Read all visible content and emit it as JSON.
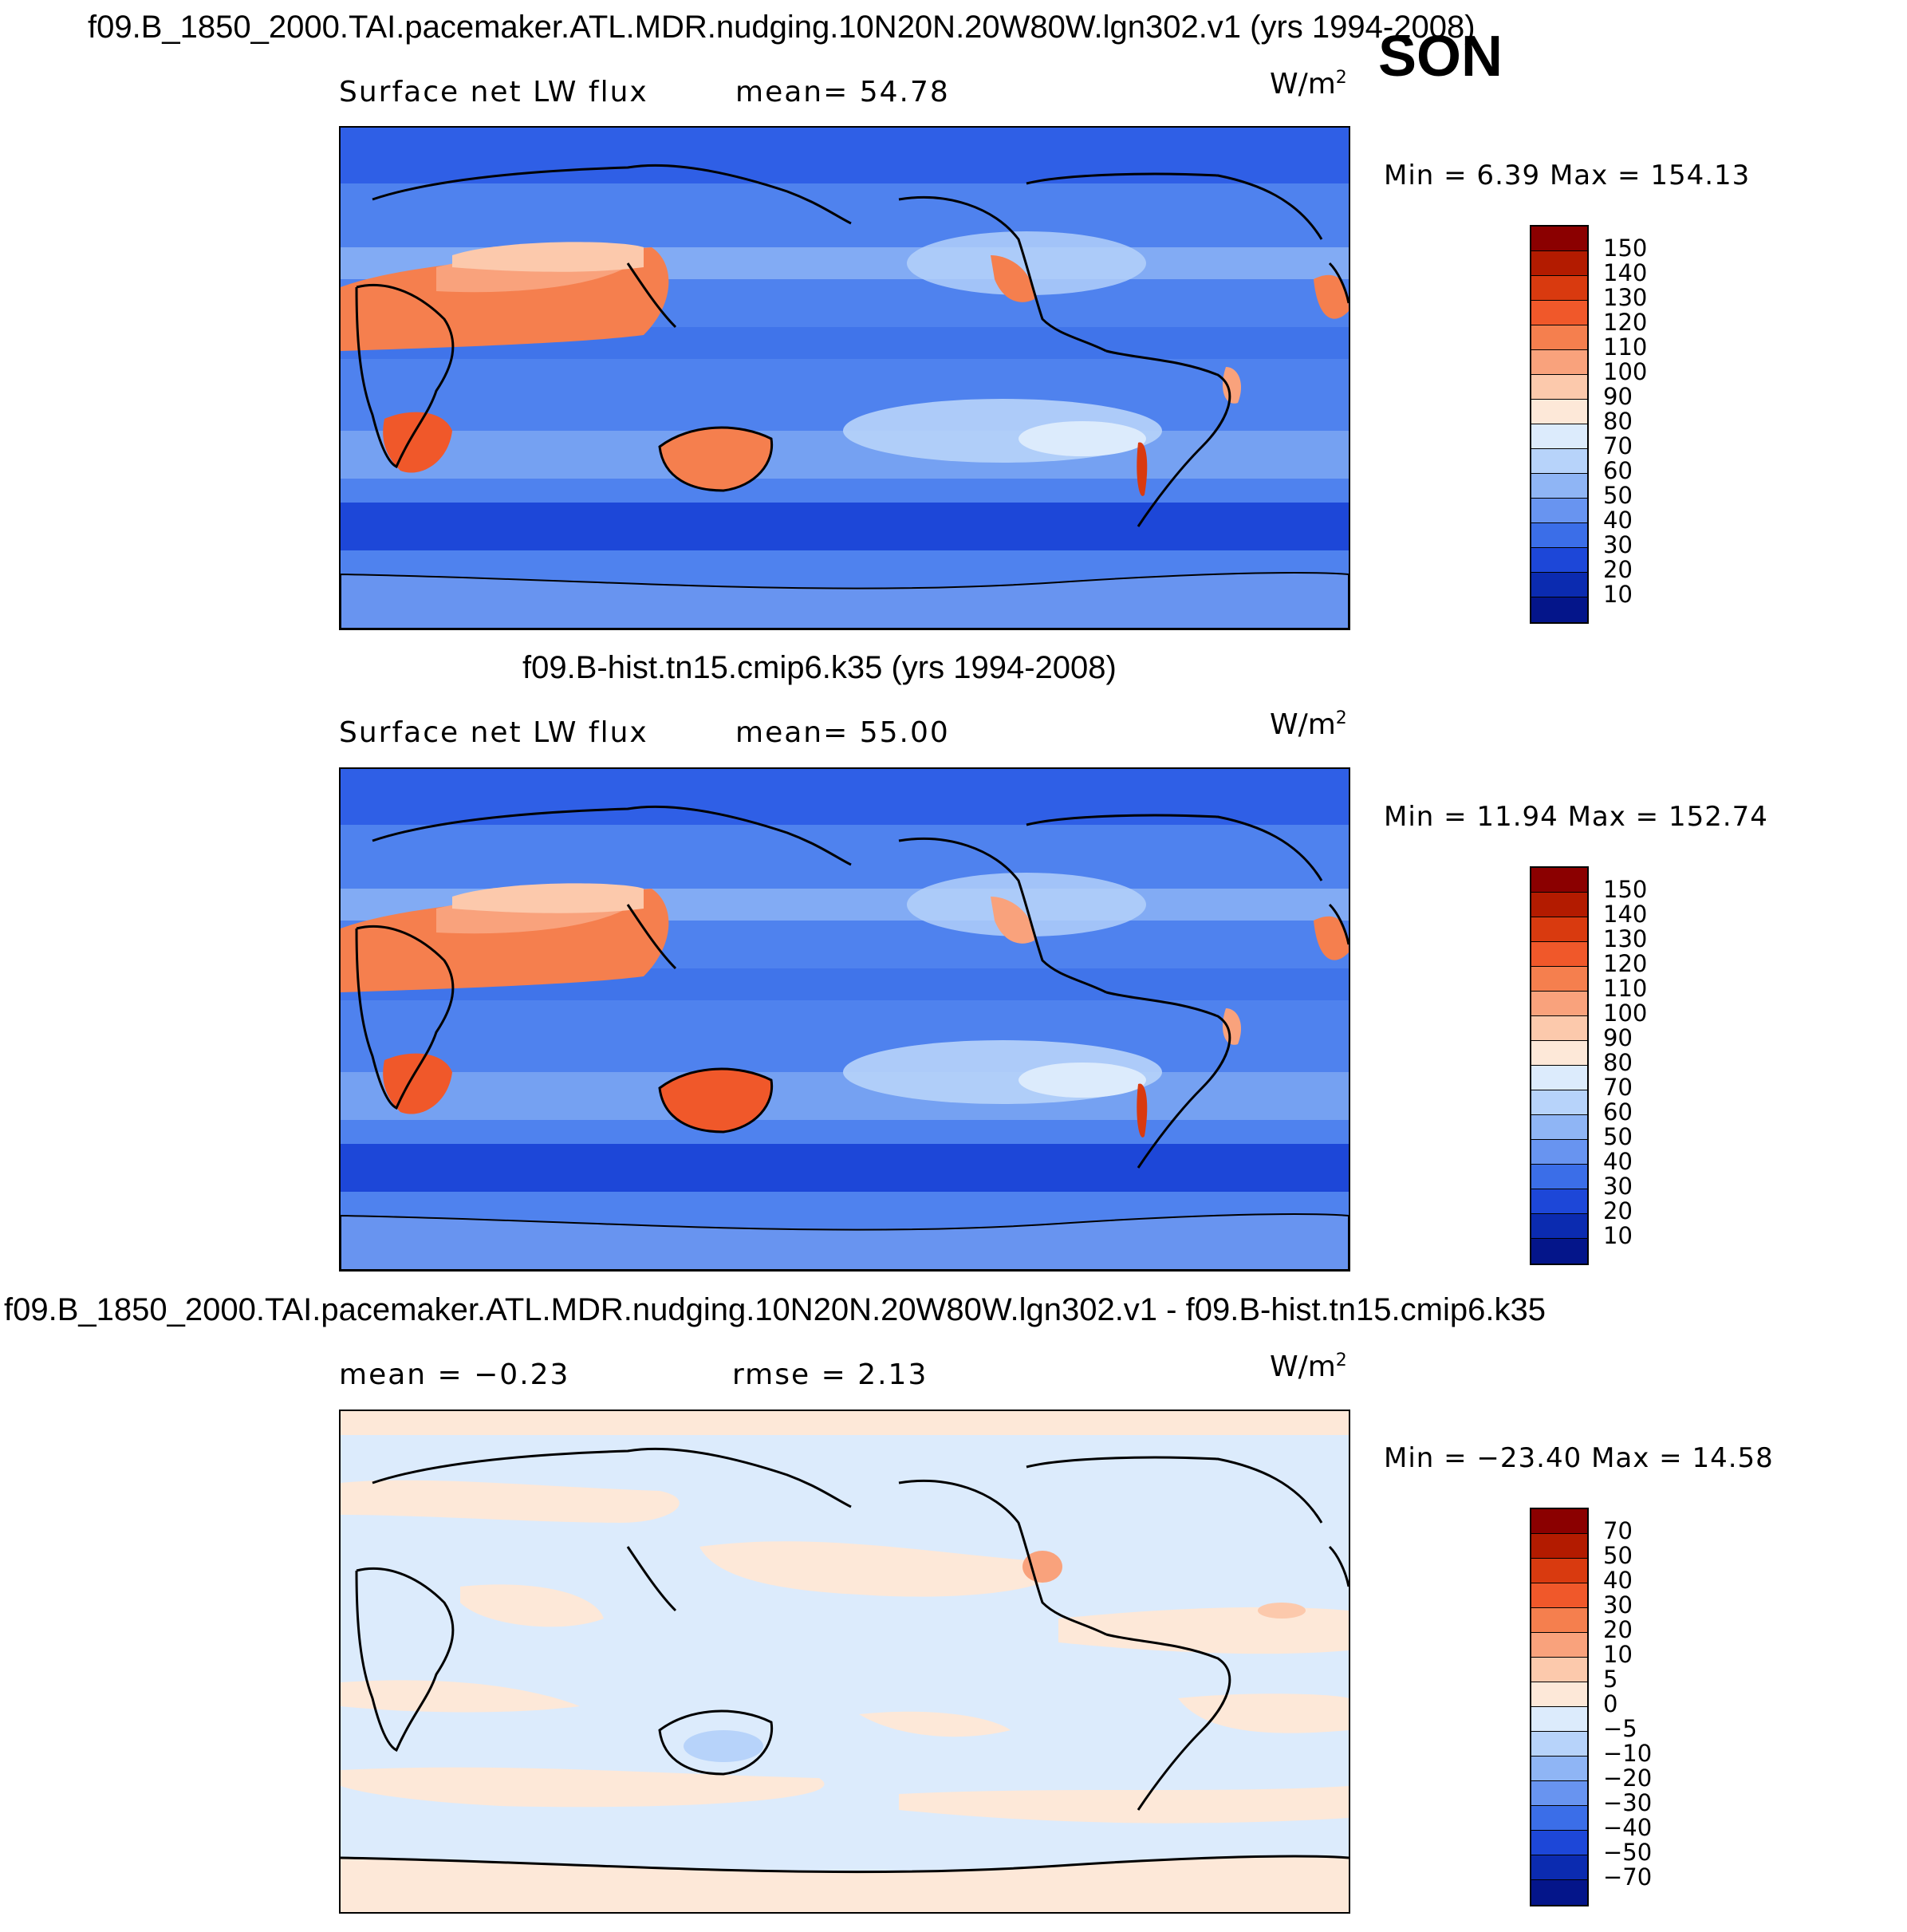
{
  "season": "SON",
  "panels": [
    {
      "title": "f09.B_1850_2000.TAI.pacemaker.ATL.MDR.nudging.10N20N.20W80W.lgn302.v1 (yrs 1994-2008)",
      "left_label": "Surface net LW flux",
      "stat_text": "mean=   54.78",
      "units": "W/m",
      "units_exp": "2",
      "minmax": "Min =    6.39  Max  =  154.13",
      "type": "abs"
    },
    {
      "title": "f09.B-hist.tn15.cmip6.k35 (yrs 1994-2008)",
      "left_label": "Surface net LW flux",
      "stat_text": "mean=   55.00",
      "units": "W/m",
      "units_exp": "2",
      "minmax": "Min =   11.94  Max  =  152.74",
      "type": "abs"
    },
    {
      "title": "f09.B_1850_2000.TAI.pacemaker.ATL.MDR.nudging.10N20N.20W80W.lgn302.v1 - f09.B-hist.tn15.cmip6.k35",
      "left_label": "mean =   −0.23",
      "stat_text": "rmse =     2.13",
      "units": "W/m",
      "units_exp": "2",
      "minmax": "Min = −23.40  Max =    14.58",
      "type": "diff"
    }
  ],
  "colorbar_abs": {
    "labels": [
      "150",
      "140",
      "130",
      "120",
      "110",
      "100",
      "90",
      "80",
      "70",
      "60",
      "50",
      "40",
      "30",
      "20",
      "10"
    ],
    "colors": [
      "#8b0000",
      "#b31b00",
      "#d93a0f",
      "#f0582a",
      "#f57f4e",
      "#f9a27c",
      "#fcc9ac",
      "#fde8d8",
      "#dcebfc",
      "#b7d3fa",
      "#8fb5f5",
      "#6894f0",
      "#3b6ee8",
      "#1d47d8",
      "#0b2bb0",
      "#04158a"
    ]
  },
  "colorbar_diff": {
    "labels": [
      "70",
      "50",
      "40",
      "30",
      "20",
      "10",
      "5",
      "0",
      "−5",
      "−10",
      "−20",
      "−30",
      "−40",
      "−50",
      "−70"
    ],
    "colors": [
      "#8b0000",
      "#b31b00",
      "#d93a0f",
      "#f0582a",
      "#f57f4e",
      "#f9a27c",
      "#fcc9ac",
      "#fde8d8",
      "#dcebfc",
      "#b7d3fa",
      "#8fb5f5",
      "#6894f0",
      "#3b6ee8",
      "#1d47d8",
      "#0b2bb0",
      "#04158a"
    ]
  }
}
